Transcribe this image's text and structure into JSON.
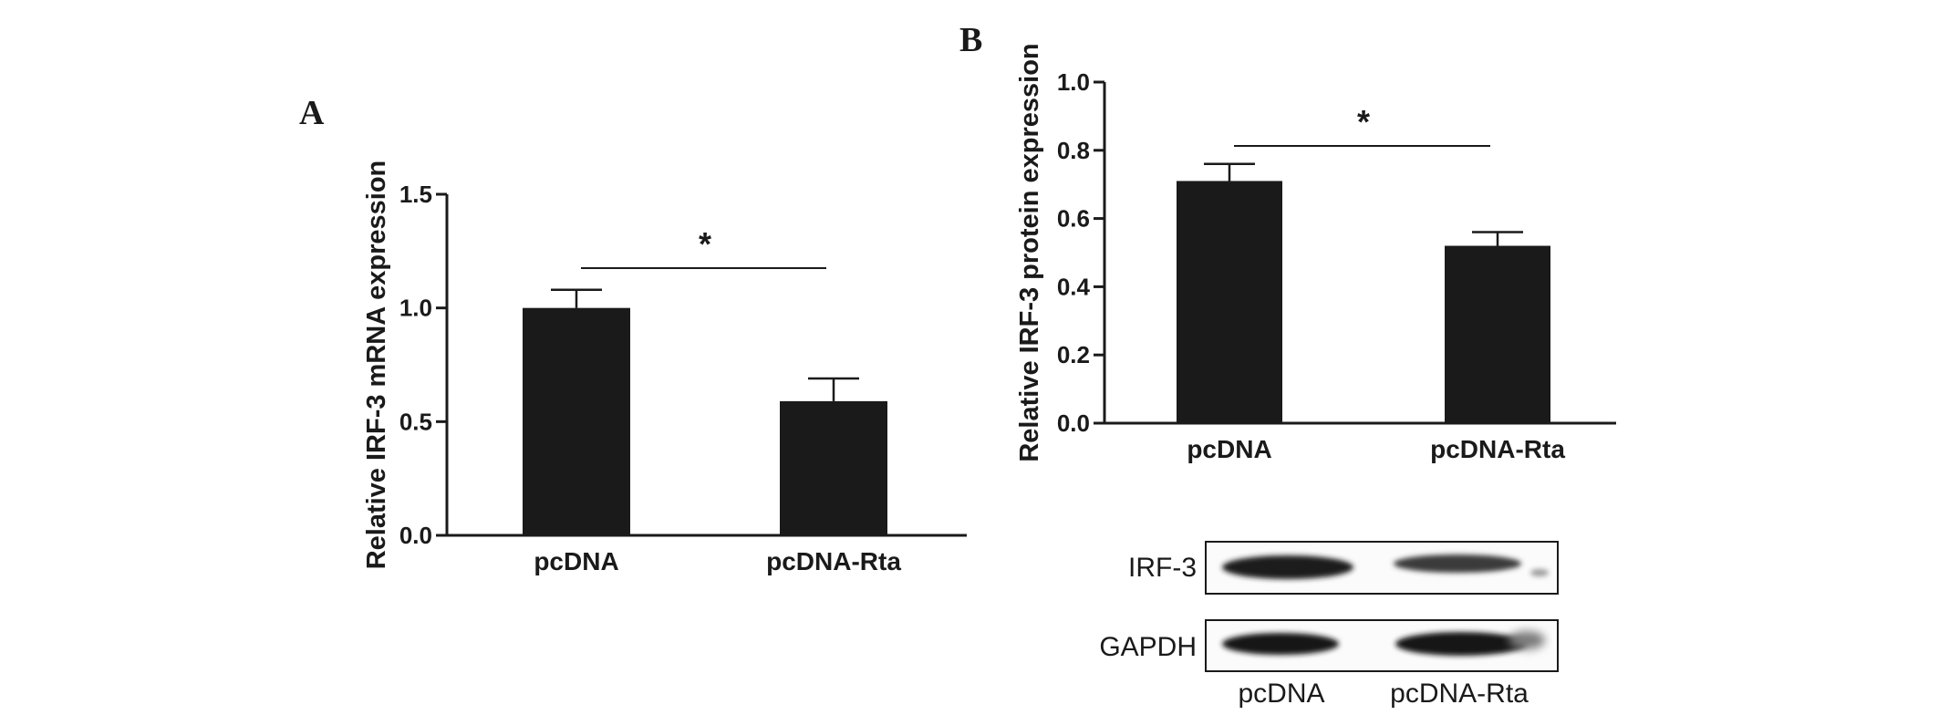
{
  "panels": {
    "a_letter": "A",
    "b_letter": "B"
  },
  "chart_data": [
    {
      "id": "A",
      "type": "bar",
      "categories": [
        "pcDNA",
        "pcDNA-Rta"
      ],
      "values": [
        1.0,
        0.59
      ],
      "errors": [
        0.08,
        0.1
      ],
      "title": "",
      "xlabel": "",
      "ylabel": "Relative IRF-3 mRNA expression",
      "ylim": [
        0,
        1.5
      ],
      "yticks": [
        0.0,
        0.5,
        1.0,
        1.5
      ],
      "ytick_labels": [
        "0.0",
        "0.5",
        "1.0",
        "1.5"
      ],
      "significance": "*",
      "bar_color": "#1a1a1a",
      "grid": false,
      "legend": "none"
    },
    {
      "id": "B",
      "type": "bar",
      "categories": [
        "pcDNA",
        "pcDNA-Rta"
      ],
      "values": [
        0.71,
        0.52
      ],
      "errors": [
        0.05,
        0.04
      ],
      "title": "",
      "xlabel": "",
      "ylabel": "Relative IRF-3 protein expression",
      "ylim": [
        0,
        1.0
      ],
      "yticks": [
        0.0,
        0.2,
        0.4,
        0.6,
        0.8,
        1.0
      ],
      "ytick_labels": [
        "0.0",
        "0.2",
        "0.4",
        "0.6",
        "0.8",
        "1.0"
      ],
      "significance": "*",
      "bar_color": "#1a1a1a",
      "grid": false,
      "legend": "none"
    }
  ],
  "blot": {
    "rows": [
      "IRF-3",
      "GAPDH"
    ],
    "lanes": [
      "pcDNA",
      "pcDNA-Rta"
    ]
  }
}
